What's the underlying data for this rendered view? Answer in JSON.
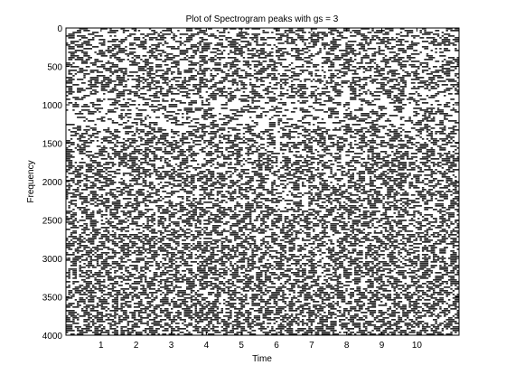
{
  "chart_data": {
    "type": "heatmap",
    "title": "Plot of Spectrogram peaks with gs = 3",
    "xlabel": "Time",
    "ylabel": "Frequency",
    "xlim": [
      0,
      11.2
    ],
    "ylim": [
      0,
      4000
    ],
    "y_axis_reversed": true,
    "x_ticks": [
      1,
      2,
      3,
      4,
      5,
      6,
      7,
      8,
      9,
      10
    ],
    "x_tick_labels": [
      "1",
      "2",
      "3",
      "4",
      "5",
      "6",
      "7",
      "8",
      "9",
      "10"
    ],
    "y_ticks": [
      0,
      500,
      1000,
      1500,
      2000,
      2500,
      3000,
      3500,
      4000
    ],
    "y_tick_labels": [
      "0",
      "500",
      "1000",
      "1500",
      "2000",
      "2500",
      "3000",
      "3500",
      "4000"
    ],
    "grid": false,
    "legend": "none",
    "colors": {
      "peak": "#2a2a2a",
      "background": "#ffffff",
      "axes": "#000000"
    }
  }
}
